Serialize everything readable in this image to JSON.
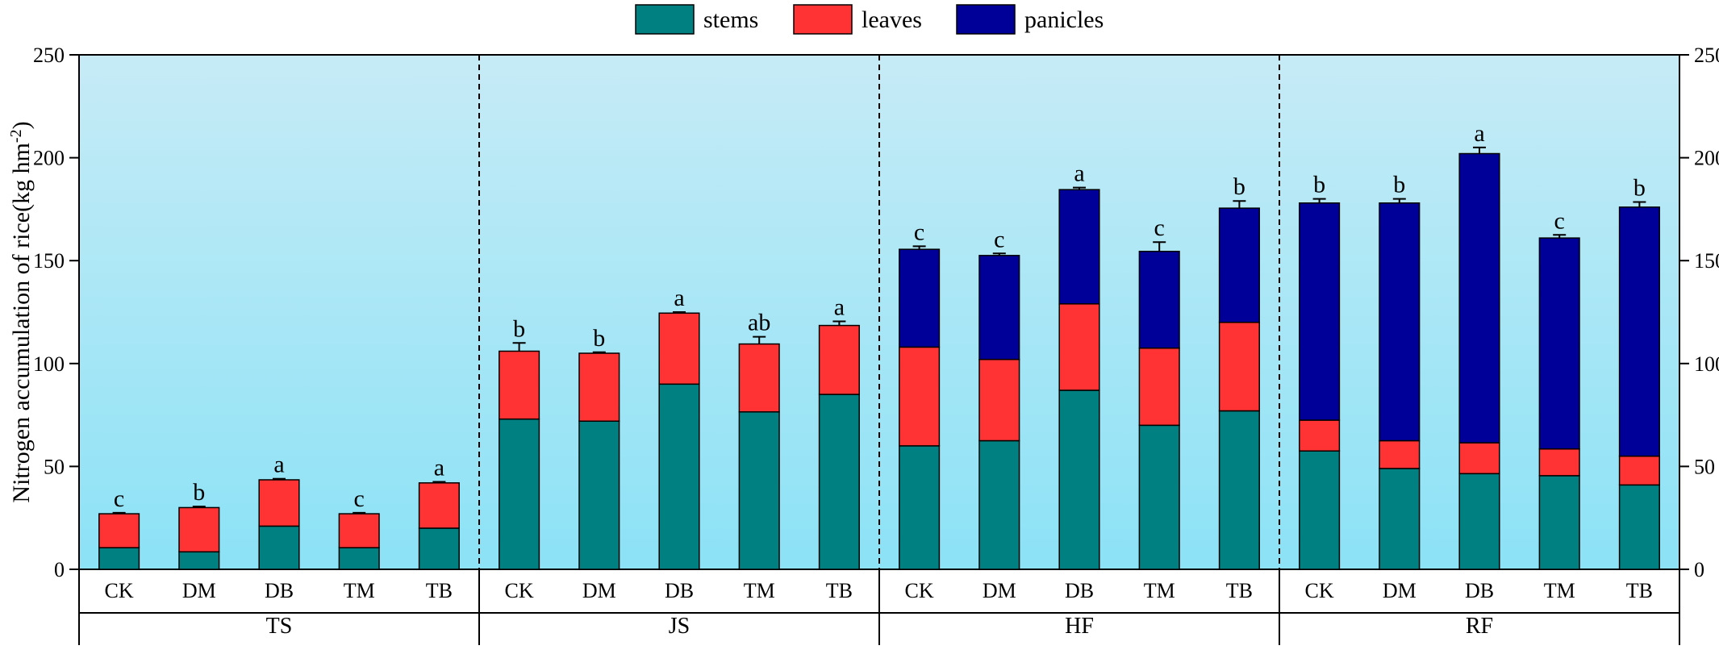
{
  "chart_data": {
    "type": "bar",
    "stacked": true,
    "title": "",
    "ylabel": "Nitrogen accumulation of rice(kg hm",
    "ylabel_sup": "-2",
    "ylabel_close": ")",
    "ylim": [
      0,
      250
    ],
    "yticks": [
      0,
      50,
      100,
      150,
      200,
      250
    ],
    "legend_position": "top-center",
    "colors": {
      "stems": "#008080",
      "leaves": "#ff3333",
      "panicles": "#000099"
    },
    "series_names": [
      "stems",
      "leaves",
      "panicles"
    ],
    "groups": [
      {
        "name": "TS",
        "categories": [
          "CK",
          "DM",
          "DB",
          "TM",
          "TB"
        ],
        "stems": [
          10.5,
          8.5,
          21,
          10.5,
          20
        ],
        "stems_err": [
          0.8,
          0.5,
          0.8,
          0.8,
          0.5
        ],
        "leaves": [
          16.5,
          21.5,
          22.5,
          16.5,
          22
        ],
        "leaves_err": [
          0.5,
          0.5,
          0.5,
          0.5,
          0.5
        ],
        "panicles": [
          0,
          0,
          0,
          0,
          0
        ],
        "panicles_err": [
          0,
          0,
          0,
          0,
          0
        ],
        "significance": [
          "c",
          "b",
          "a",
          "c",
          "a"
        ]
      },
      {
        "name": "JS",
        "categories": [
          "CK",
          "DM",
          "DB",
          "TM",
          "TB"
        ],
        "stems": [
          73,
          72,
          90,
          76.5,
          85
        ],
        "stems_err": [
          3,
          2,
          3,
          1.5,
          2
        ],
        "leaves": [
          33,
          33,
          34.5,
          33,
          33.5
        ],
        "leaves_err": [
          4,
          0.5,
          0.5,
          3.5,
          2
        ],
        "panicles": [
          0,
          0,
          0,
          0,
          0
        ],
        "panicles_err": [
          0,
          0,
          0,
          0,
          0
        ],
        "significance": [
          "b",
          "b",
          "a",
          "ab",
          "a"
        ]
      },
      {
        "name": "HF",
        "categories": [
          "CK",
          "DM",
          "DB",
          "TM",
          "TB"
        ],
        "stems": [
          60,
          62.5,
          87,
          70,
          77
        ],
        "stems_err": [
          2,
          3,
          3.5,
          3,
          2.5
        ],
        "leaves": [
          48,
          39.5,
          42,
          37.5,
          43
        ],
        "leaves_err": [
          3,
          4,
          3.5,
          4,
          3
        ],
        "panicles": [
          47.5,
          50.5,
          55.5,
          47,
          55.5
        ],
        "panicles_err": [
          1.5,
          1,
          1,
          4.5,
          3.5
        ],
        "significance": [
          "c",
          "c",
          "a",
          "c",
          "b"
        ]
      },
      {
        "name": "RF",
        "categories": [
          "CK",
          "DM",
          "DB",
          "TM",
          "TB"
        ],
        "stems": [
          57.5,
          49,
          46.5,
          45.5,
          41
        ],
        "stems_err": [
          2,
          3,
          2.5,
          2,
          2
        ],
        "leaves": [
          15,
          13.5,
          15,
          13,
          14
        ],
        "leaves_err": [
          3,
          0.5,
          1,
          0.5,
          0.5
        ],
        "panicles": [
          105.5,
          115.5,
          140.5,
          102.5,
          121
        ],
        "panicles_err": [
          2,
          2,
          3,
          1.5,
          2.5
        ],
        "significance": [
          "b",
          "b",
          "a",
          "c",
          "b"
        ]
      }
    ]
  }
}
